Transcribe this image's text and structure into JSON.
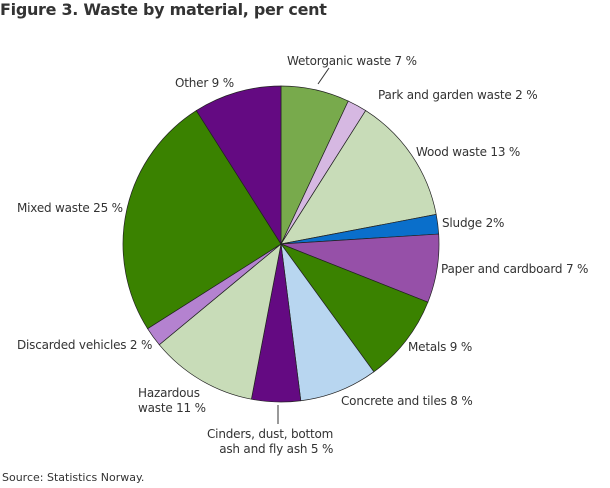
{
  "chart_data": {
    "type": "pie",
    "title": "Figure 3. Waste by material, per cent",
    "source": "Source: Statistics Norway.",
    "start_angle": "top",
    "direction": "clockwise",
    "slices": [
      {
        "label": "Wetorganic waste 7 %",
        "value": 7,
        "color": "#78aa4c"
      },
      {
        "label": "Park and garden waste 2 %",
        "value": 2,
        "color": "#d6b8e2"
      },
      {
        "label": "Wood waste 13 %",
        "value": 13,
        "color": "#c8dcb8"
      },
      {
        "label": "Sludge 2%",
        "value": 2,
        "color": "#0a6fcb"
      },
      {
        "label": "Paper and cardboard 7 %",
        "value": 7,
        "color": "#9650a8"
      },
      {
        "label": "Metals 9 %",
        "value": 9,
        "color": "#3a8200"
      },
      {
        "label": "Concrete and tiles 8 %",
        "value": 8,
        "color": "#b8d6f0"
      },
      {
        "label": "Cinders, dust, bottom ash and fly ash 5 %",
        "value": 5,
        "color": "#640a82"
      },
      {
        "label": "Hazardous waste 11 %",
        "value": 11,
        "color": "#c8dcb8"
      },
      {
        "label": "Discarded vehicles 2 %",
        "value": 2,
        "color": "#b482d0"
      },
      {
        "label": "Mixed waste 25 %",
        "value": 25,
        "color": "#3a8200"
      },
      {
        "label": "Other 9 %",
        "value": 9,
        "color": "#640a82"
      }
    ],
    "label_lines": {
      "cinders": [
        "Cinders, dust, bottom",
        "ash and fly ash 5 %"
      ],
      "hazardous": [
        "Hazardous",
        "waste 11 %"
      ]
    }
  }
}
